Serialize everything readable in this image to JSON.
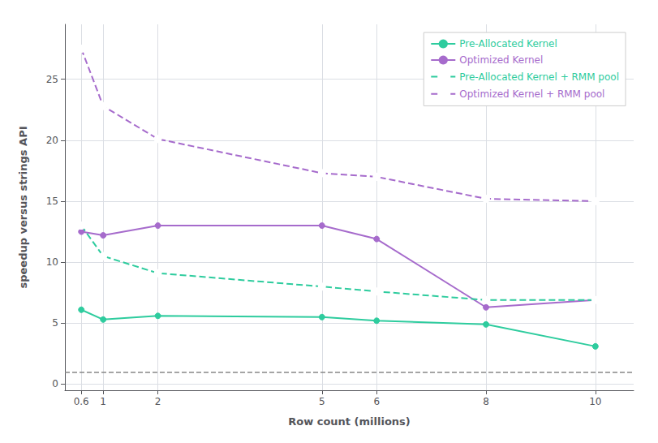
{
  "chart_data": {
    "type": "line",
    "x": [
      0.6,
      1,
      2,
      5,
      6,
      8,
      10
    ],
    "series": [
      {
        "name": "Pre-Allocated Kernel",
        "color": "#2ecc9e",
        "values": [
          6.1,
          5.3,
          5.6,
          5.5,
          5.2,
          4.9,
          3.1
        ],
        "marker": "filled_circle",
        "line_style": "solid"
      },
      {
        "name": "Optimized Kernel",
        "color": "#a66bcc",
        "values": [
          12.5,
          12.2,
          13.0,
          13.0,
          11.9,
          6.3,
          6.9
        ],
        "marker": "filled_circle",
        "line_style": "solid"
      },
      {
        "name": "Pre-Allocated Kernel + RMM pool",
        "color": "#2ecc9e",
        "values": [
          13.0,
          10.5,
          9.1,
          8.0,
          7.6,
          6.9,
          6.9
        ],
        "marker": "open_circle",
        "line_style": "dashed"
      },
      {
        "name": "Optimized Kernel + RMM pool",
        "color": "#a66bcc",
        "values": [
          27.5,
          22.8,
          20.1,
          17.3,
          17.0,
          15.2,
          15.0
        ],
        "marker": "open_circle",
        "line_style": "dashed"
      }
    ],
    "baseline": 1.0,
    "xlabel": "Row count (millions)",
    "ylabel": "speedup versus strings API",
    "xlim": [
      0.3,
      10.7
    ],
    "xticks": [
      0.6,
      1,
      2,
      5,
      6,
      8,
      10
    ],
    "ylim": [
      -0.5,
      29.5
    ],
    "yticks": [
      0,
      5,
      10,
      15,
      20,
      25
    ],
    "grid": true,
    "legend": "upper right"
  }
}
